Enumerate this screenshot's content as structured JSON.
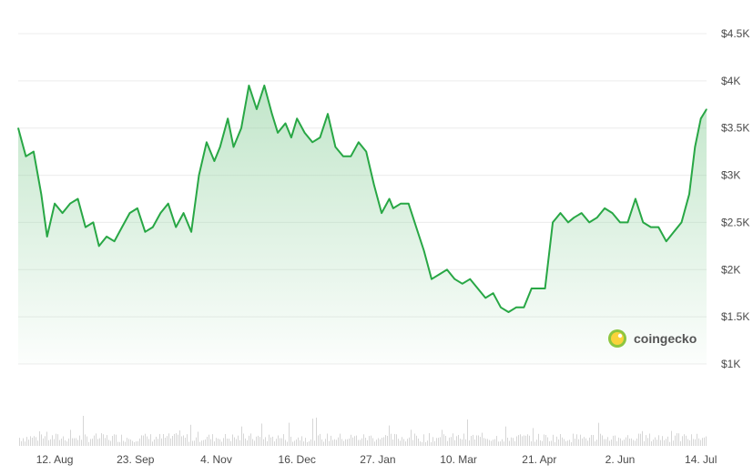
{
  "chart_data": {
    "type": "area",
    "title": "",
    "xlabel": "",
    "ylabel": "",
    "y_ticks": [
      "$1K",
      "$1.5K",
      "$2K",
      "$2.5K",
      "$3K",
      "$3.5K",
      "$4K",
      "$4.5K"
    ],
    "y_tick_values": [
      1000,
      1500,
      2000,
      2500,
      3000,
      3500,
      4000,
      4500
    ],
    "ylim": [
      1000,
      4500
    ],
    "x_ticks": [
      "12. Aug",
      "23. Sep",
      "4. Nov",
      "16. Dec",
      "27. Jan",
      "10. Mar",
      "21. Apr",
      "2. Jun",
      "14. Jul"
    ],
    "xlim": [
      "2024-07-24",
      "2025-07-17"
    ],
    "grid": true,
    "line_color": "#28a745",
    "fill_color_top": "#8fd19e",
    "volume_color": "#d6d6d6",
    "series": [
      {
        "x": [
          "2024-07-24",
          "2024-07-28",
          "2024-08-01",
          "2024-08-05",
          "2024-08-08",
          "2024-08-12",
          "2024-08-16",
          "2024-08-20",
          "2024-08-24",
          "2024-08-28",
          "2024-09-01",
          "2024-09-04",
          "2024-09-08",
          "2024-09-12",
          "2024-09-16",
          "2024-09-20",
          "2024-09-24",
          "2024-09-28",
          "2024-10-02",
          "2024-10-06",
          "2024-10-10",
          "2024-10-14",
          "2024-10-18",
          "2024-10-22",
          "2024-10-26",
          "2024-10-30",
          "2024-11-03",
          "2024-11-06",
          "2024-11-10",
          "2024-11-13",
          "2024-11-17",
          "2024-11-21",
          "2024-11-25",
          "2024-11-29",
          "2024-12-03",
          "2024-12-06",
          "2024-12-10",
          "2024-12-13",
          "2024-12-16",
          "2024-12-20",
          "2024-12-24",
          "2024-12-28",
          "2025-01-01",
          "2025-01-05",
          "2025-01-09",
          "2025-01-13",
          "2025-01-17",
          "2025-01-21",
          "2025-01-25",
          "2025-01-29",
          "2025-02-02",
          "2025-02-04",
          "2025-02-08",
          "2025-02-12",
          "2025-02-16",
          "2025-02-20",
          "2025-02-24",
          "2025-02-28",
          "2025-03-04",
          "2025-03-08",
          "2025-03-12",
          "2025-03-16",
          "2025-03-20",
          "2025-03-24",
          "2025-03-28",
          "2025-04-01",
          "2025-04-05",
          "2025-04-09",
          "2025-04-13",
          "2025-04-17",
          "2025-04-21",
          "2025-04-24",
          "2025-04-28",
          "2025-05-02",
          "2025-05-06",
          "2025-05-09",
          "2025-05-13",
          "2025-05-17",
          "2025-05-21",
          "2025-05-25",
          "2025-05-29",
          "2025-06-02",
          "2025-06-06",
          "2025-06-10",
          "2025-06-14",
          "2025-06-18",
          "2025-06-22",
          "2025-06-26",
          "2025-06-30",
          "2025-07-04",
          "2025-07-08",
          "2025-07-11",
          "2025-07-14",
          "2025-07-17"
        ],
        "values": [
          3500,
          3200,
          3250,
          2800,
          2350,
          2700,
          2600,
          2700,
          2750,
          2450,
          2500,
          2250,
          2350,
          2300,
          2450,
          2600,
          2650,
          2400,
          2450,
          2600,
          2700,
          2450,
          2600,
          2400,
          3000,
          3350,
          3150,
          3300,
          3600,
          3300,
          3500,
          3950,
          3700,
          3950,
          3650,
          3450,
          3550,
          3400,
          3600,
          3450,
          3350,
          3400,
          3650,
          3300,
          3200,
          3200,
          3350,
          3250,
          2900,
          2600,
          2750,
          2650,
          2700,
          2700,
          2450,
          2200,
          1900,
          1950,
          2000,
          1900,
          1850,
          1900,
          1800,
          1700,
          1750,
          1600,
          1550,
          1600,
          1600,
          1800,
          1800,
          1800,
          2500,
          2600,
          2500,
          2550,
          2600,
          2500,
          2550,
          2650,
          2600,
          2500,
          2500,
          2750,
          2500,
          2450,
          2450,
          2300,
          2400,
          2500,
          2800,
          3300,
          3600,
          3700
        ]
      }
    ],
    "brand": "coingecko"
  }
}
